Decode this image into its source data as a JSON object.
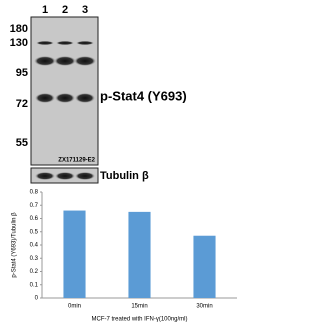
{
  "blot": {
    "lanes": [
      "1",
      "2",
      "3"
    ],
    "markers": [
      "180",
      "130",
      "95",
      "72",
      "55"
    ],
    "antibody": "p-Stat4 (Y693)",
    "catalog": "ZX171129-E2",
    "loading_control": "Tubulin β"
  },
  "chart_data": {
    "type": "bar",
    "y_label": "p-Stat4 (Y693)/Tubulin β",
    "x_label": "MCF-7 treated with IFN-γ(100ng/ml)",
    "categories": [
      "0min",
      "15min",
      "30min"
    ],
    "values": [
      0.66,
      0.65,
      0.47
    ],
    "color": "#5b9bd5",
    "ylim": [
      0,
      0.8
    ],
    "yticks": [
      0,
      0.1,
      0.2,
      0.3,
      0.4,
      0.5,
      0.6,
      0.7,
      0.8
    ],
    "grid": false
  }
}
